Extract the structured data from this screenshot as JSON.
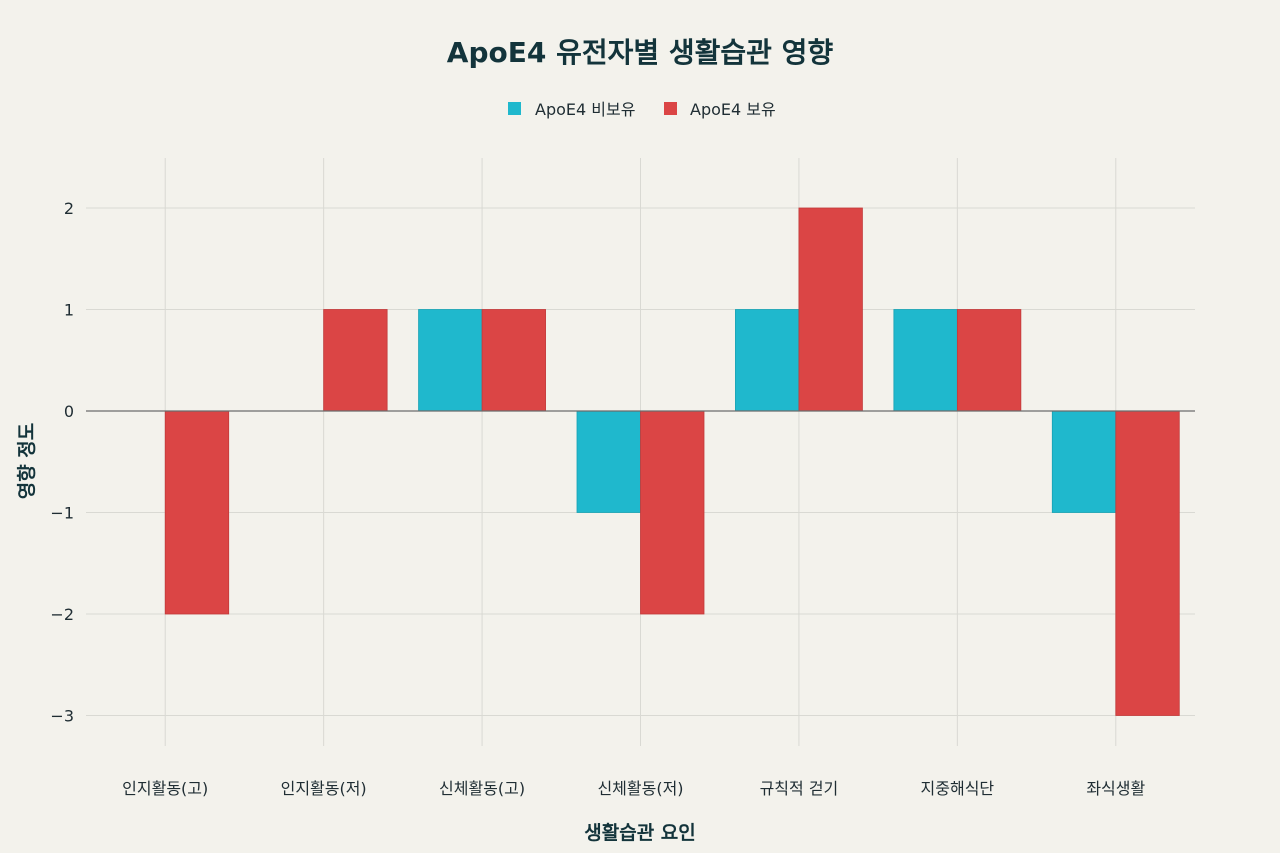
{
  "chart_data": {
    "type": "bar",
    "title": "ApoE4 유전자별 생활습관 영향",
    "xlabel": "생활습관 요인",
    "ylabel": "영향 정도",
    "categories": [
      "인지활동(고)",
      "인지활동(저)",
      "신체활동(고)",
      "신체활동(저)",
      "규칙적 걷기",
      "지중해식단",
      "좌식생활"
    ],
    "series": [
      {
        "name": "ApoE4 비보유",
        "color": "#1fb8cd",
        "values": [
          0,
          0,
          1,
          -1,
          1,
          1,
          -1
        ]
      },
      {
        "name": "ApoE4 보유",
        "color": "#db4545",
        "values": [
          -2,
          1,
          1,
          -2,
          2,
          1,
          -3
        ]
      }
    ],
    "ylim": [
      -3.5,
      2.5
    ],
    "yticks": [
      2,
      1,
      0,
      -1,
      -2,
      -3
    ],
    "ytick_labels": [
      "2",
      "1",
      "0",
      "−1",
      "−2",
      "−3"
    ],
    "grid": true,
    "legend_position": "top-center"
  }
}
